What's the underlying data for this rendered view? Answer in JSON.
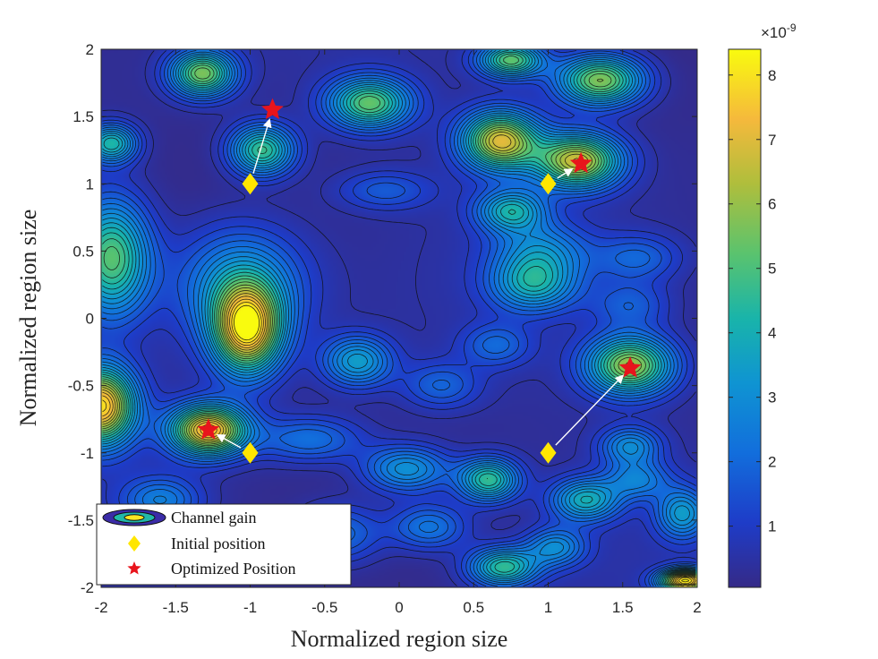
{
  "chart_data": {
    "type": "contour",
    "xlabel": "Normalized region size",
    "ylabel": "Normalized region size",
    "xlim": [
      -2,
      2
    ],
    "ylim": [
      -2,
      2
    ],
    "xticks": [
      "-2",
      "-1.5",
      "-1",
      "-0.5",
      "0",
      "0.5",
      "1",
      "1.5",
      "2"
    ],
    "yticks": [
      "-2",
      "-1.5",
      "-1",
      "-0.5",
      "0",
      "0.5",
      "1",
      "1.5",
      "2"
    ],
    "colorbar": {
      "exponent_base": "×10",
      "exponent": "-9",
      "range": [
        0.05,
        8.4
      ],
      "ticks": [
        "1",
        "2",
        "3",
        "4",
        "5",
        "6",
        "7",
        "8"
      ]
    },
    "peaks": [
      {
        "x": -2.0,
        "y": -0.65,
        "value": 7.5,
        "sx": 0.16,
        "sy": 0.2
      },
      {
        "x": -1.28,
        "y": -0.83,
        "value": 7.4,
        "sx": 0.18,
        "sy": 0.13
      },
      {
        "x": -1.02,
        "y": -0.08,
        "value": 7.2,
        "sx": 0.16,
        "sy": 0.23
      },
      {
        "x": -1.07,
        "y": 0.25,
        "value": 3.0,
        "sx": 0.3,
        "sy": 0.3
      },
      {
        "x": -1.93,
        "y": 0.45,
        "value": 5.0,
        "sx": 0.18,
        "sy": 0.3
      },
      {
        "x": -1.32,
        "y": 1.82,
        "value": 5.4,
        "sx": 0.15,
        "sy": 0.12
      },
      {
        "x": -1.93,
        "y": 1.3,
        "value": 4.0,
        "sx": 0.12,
        "sy": 0.1
      },
      {
        "x": -0.92,
        "y": 1.25,
        "value": 4.6,
        "sx": 0.15,
        "sy": 0.13
      },
      {
        "x": -0.2,
        "y": 1.6,
        "value": 5.0,
        "sx": 0.19,
        "sy": 0.13
      },
      {
        "x": -0.1,
        "y": 0.95,
        "value": 1.4,
        "sx": 0.22,
        "sy": 0.1
      },
      {
        "x": 0.68,
        "y": 1.32,
        "value": 6.6,
        "sx": 0.18,
        "sy": 0.15
      },
      {
        "x": 0.75,
        "y": 1.92,
        "value": 5.0,
        "sx": 0.15,
        "sy": 0.09
      },
      {
        "x": 1.35,
        "y": 1.77,
        "value": 5.6,
        "sx": 0.2,
        "sy": 0.13
      },
      {
        "x": 1.2,
        "y": 1.17,
        "value": 6.4,
        "sx": 0.2,
        "sy": 0.14
      },
      {
        "x": 0.75,
        "y": 0.8,
        "value": 3.6,
        "sx": 0.16,
        "sy": 0.11
      },
      {
        "x": 0.95,
        "y": 0.5,
        "value": 2.3,
        "sx": 0.22,
        "sy": 0.15
      },
      {
        "x": 0.9,
        "y": 0.25,
        "value": 3.3,
        "sx": 0.2,
        "sy": 0.14
      },
      {
        "x": 1.6,
        "y": 0.45,
        "value": 1.6,
        "sx": 0.2,
        "sy": 0.12
      },
      {
        "x": 1.55,
        "y": -0.35,
        "value": 5.8,
        "sx": 0.2,
        "sy": 0.15
      },
      {
        "x": -0.28,
        "y": -0.32,
        "value": 3.2,
        "sx": 0.16,
        "sy": 0.13
      },
      {
        "x": 0.28,
        "y": -0.5,
        "value": 1.6,
        "sx": 0.18,
        "sy": 0.12
      },
      {
        "x": 0.05,
        "y": -1.12,
        "value": 3.0,
        "sx": 0.2,
        "sy": 0.12
      },
      {
        "x": 0.6,
        "y": -1.2,
        "value": 4.4,
        "sx": 0.14,
        "sy": 0.11
      },
      {
        "x": 0.7,
        "y": -1.85,
        "value": 4.3,
        "sx": 0.16,
        "sy": 0.1
      },
      {
        "x": 0.2,
        "y": -1.55,
        "value": 2.2,
        "sx": 0.18,
        "sy": 0.12
      },
      {
        "x": -0.4,
        "y": -1.6,
        "value": 2.0,
        "sx": 0.2,
        "sy": 0.15
      },
      {
        "x": 1.25,
        "y": -1.35,
        "value": 3.6,
        "sx": 0.16,
        "sy": 0.11
      },
      {
        "x": 1.05,
        "y": -1.7,
        "value": 2.6,
        "sx": 0.14,
        "sy": 0.1
      },
      {
        "x": 1.55,
        "y": -0.95,
        "value": 2.6,
        "sx": 0.14,
        "sy": 0.1
      },
      {
        "x": 1.6,
        "y": -1.2,
        "value": 2.2,
        "sx": 0.15,
        "sy": 0.1
      },
      {
        "x": 1.9,
        "y": -1.45,
        "value": 3.0,
        "sx": 0.12,
        "sy": 0.13
      },
      {
        "x": 1.92,
        "y": -1.95,
        "value": 7.8,
        "sx": 0.12,
        "sy": 0.06
      },
      {
        "x": -0.6,
        "y": -0.9,
        "value": 2.0,
        "sx": 0.25,
        "sy": 0.12
      },
      {
        "x": 1.55,
        "y": 0.1,
        "value": 1.4,
        "sx": 0.18,
        "sy": 0.12
      },
      {
        "x": 0.65,
        "y": -0.2,
        "value": 1.6,
        "sx": 0.16,
        "sy": 0.11
      },
      {
        "x": -1.6,
        "y": -1.35,
        "value": 2.2,
        "sx": 0.18,
        "sy": 0.12
      }
    ],
    "initial_positions": [
      {
        "x": -1,
        "y": 1
      },
      {
        "x": 1,
        "y": 1
      },
      {
        "x": -1,
        "y": -1
      },
      {
        "x": 1,
        "y": -1
      }
    ],
    "optimized_positions": [
      {
        "x": -0.85,
        "y": 1.55
      },
      {
        "x": 1.22,
        "y": 1.15
      },
      {
        "x": -1.28,
        "y": -0.83
      },
      {
        "x": 1.55,
        "y": -0.37
      }
    ],
    "legend": {
      "position": "bottom-left",
      "entries": [
        "Channel gain",
        "Initial position",
        "Optimized Position"
      ]
    }
  }
}
